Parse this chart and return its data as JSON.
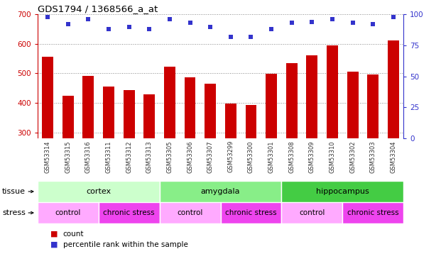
{
  "title": "GDS1794 / 1368566_a_at",
  "samples": [
    "GSM53314",
    "GSM53315",
    "GSM53316",
    "GSM53311",
    "GSM53312",
    "GSM53313",
    "GSM53305",
    "GSM53306",
    "GSM53307",
    "GSM53299",
    "GSM53300",
    "GSM53301",
    "GSM53308",
    "GSM53309",
    "GSM53310",
    "GSM53302",
    "GSM53303",
    "GSM53304"
  ],
  "counts": [
    557,
    424,
    492,
    455,
    444,
    430,
    522,
    487,
    464,
    397,
    394,
    498,
    534,
    562,
    595,
    505,
    496,
    612
  ],
  "percentiles": [
    98,
    92,
    96,
    88,
    90,
    88,
    96,
    93,
    90,
    82,
    82,
    88,
    93,
    94,
    96,
    93,
    92,
    98
  ],
  "bar_color": "#cc0000",
  "dot_color": "#3333cc",
  "ylim_left": [
    280,
    700
  ],
  "ylim_right": [
    0,
    100
  ],
  "yticks_left": [
    300,
    400,
    500,
    600,
    700
  ],
  "yticks_right": [
    0,
    25,
    50,
    75,
    100
  ],
  "tissue_groups": [
    {
      "label": "cortex",
      "start": 0,
      "end": 6,
      "color": "#ccffcc"
    },
    {
      "label": "amygdala",
      "start": 6,
      "end": 12,
      "color": "#88ee88"
    },
    {
      "label": "hippocampus",
      "start": 12,
      "end": 18,
      "color": "#44cc44"
    }
  ],
  "stress_groups": [
    {
      "label": "control",
      "start": 0,
      "end": 3,
      "color": "#ffaaff"
    },
    {
      "label": "chronic stress",
      "start": 3,
      "end": 6,
      "color": "#ee44ee"
    },
    {
      "label": "control",
      "start": 6,
      "end": 9,
      "color": "#ffaaff"
    },
    {
      "label": "chronic stress",
      "start": 9,
      "end": 12,
      "color": "#ee44ee"
    },
    {
      "label": "control",
      "start": 12,
      "end": 15,
      "color": "#ffaaff"
    },
    {
      "label": "chronic stress",
      "start": 15,
      "end": 18,
      "color": "#ee44ee"
    }
  ],
  "tissue_row_label": "tissue",
  "stress_row_label": "stress",
  "legend_count_label": "count",
  "legend_pct_label": "percentile rank within the sample",
  "left_axis_color": "#cc0000",
  "right_axis_color": "#3333cc",
  "xticklabel_color": "#333333",
  "grid_color": "#888888",
  "xtick_bg_color": "#dddddd"
}
